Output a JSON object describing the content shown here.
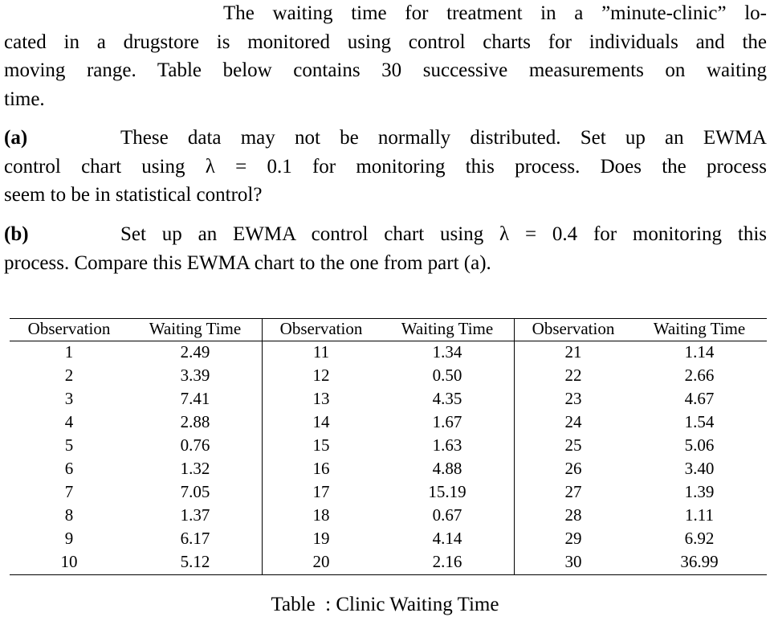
{
  "problem": {
    "intro": {
      "lines": [
        "The waiting time for treatment in a ”minute-clinic” lo-",
        "cated in a drugstore is monitored using control charts for individuals and the",
        "moving range. Table below contains 30 successive measurements on waiting",
        "time."
      ]
    },
    "parts": [
      {
        "label": "(a)",
        "lines": [
          "These data may not be normally distributed. Set up an EWMA",
          "control chart using λ = 0.1 for monitoring this process.  Does the process",
          "seem to be in statistical control?"
        ]
      },
      {
        "label": "(b)",
        "lines": [
          "Set up an EWMA control chart using λ = 0.4 for monitoring this",
          "process. Compare this EWMA chart to the one from part (a)."
        ]
      }
    ]
  },
  "table": {
    "header": [
      "Observation",
      "Waiting Time",
      "Observation",
      "Waiting Time",
      "Observation",
      "Waiting Time"
    ],
    "rows": [
      [
        "1",
        "2.49",
        "11",
        "1.34",
        "21",
        "1.14"
      ],
      [
        "2",
        "3.39",
        "12",
        "0.50",
        "22",
        "2.66"
      ],
      [
        "3",
        "7.41",
        "13",
        "4.35",
        "23",
        "4.67"
      ],
      [
        "4",
        "2.88",
        "14",
        "1.67",
        "24",
        "1.54"
      ],
      [
        "5",
        "0.76",
        "15",
        "1.63",
        "25",
        "5.06"
      ],
      [
        "6",
        "1.32",
        "16",
        "4.88",
        "26",
        "3.40"
      ],
      [
        "7",
        "7.05",
        "17",
        "15.19",
        "27",
        "1.39"
      ],
      [
        "8",
        "1.37",
        "18",
        "0.67",
        "28",
        "1.11"
      ],
      [
        "9",
        "6.17",
        "19",
        "4.14",
        "29",
        "6.92"
      ],
      [
        "10",
        "5.12",
        "20",
        "2.16",
        "30",
        "36.99"
      ]
    ],
    "caption": "Table  : Clinic Waiting Time"
  }
}
